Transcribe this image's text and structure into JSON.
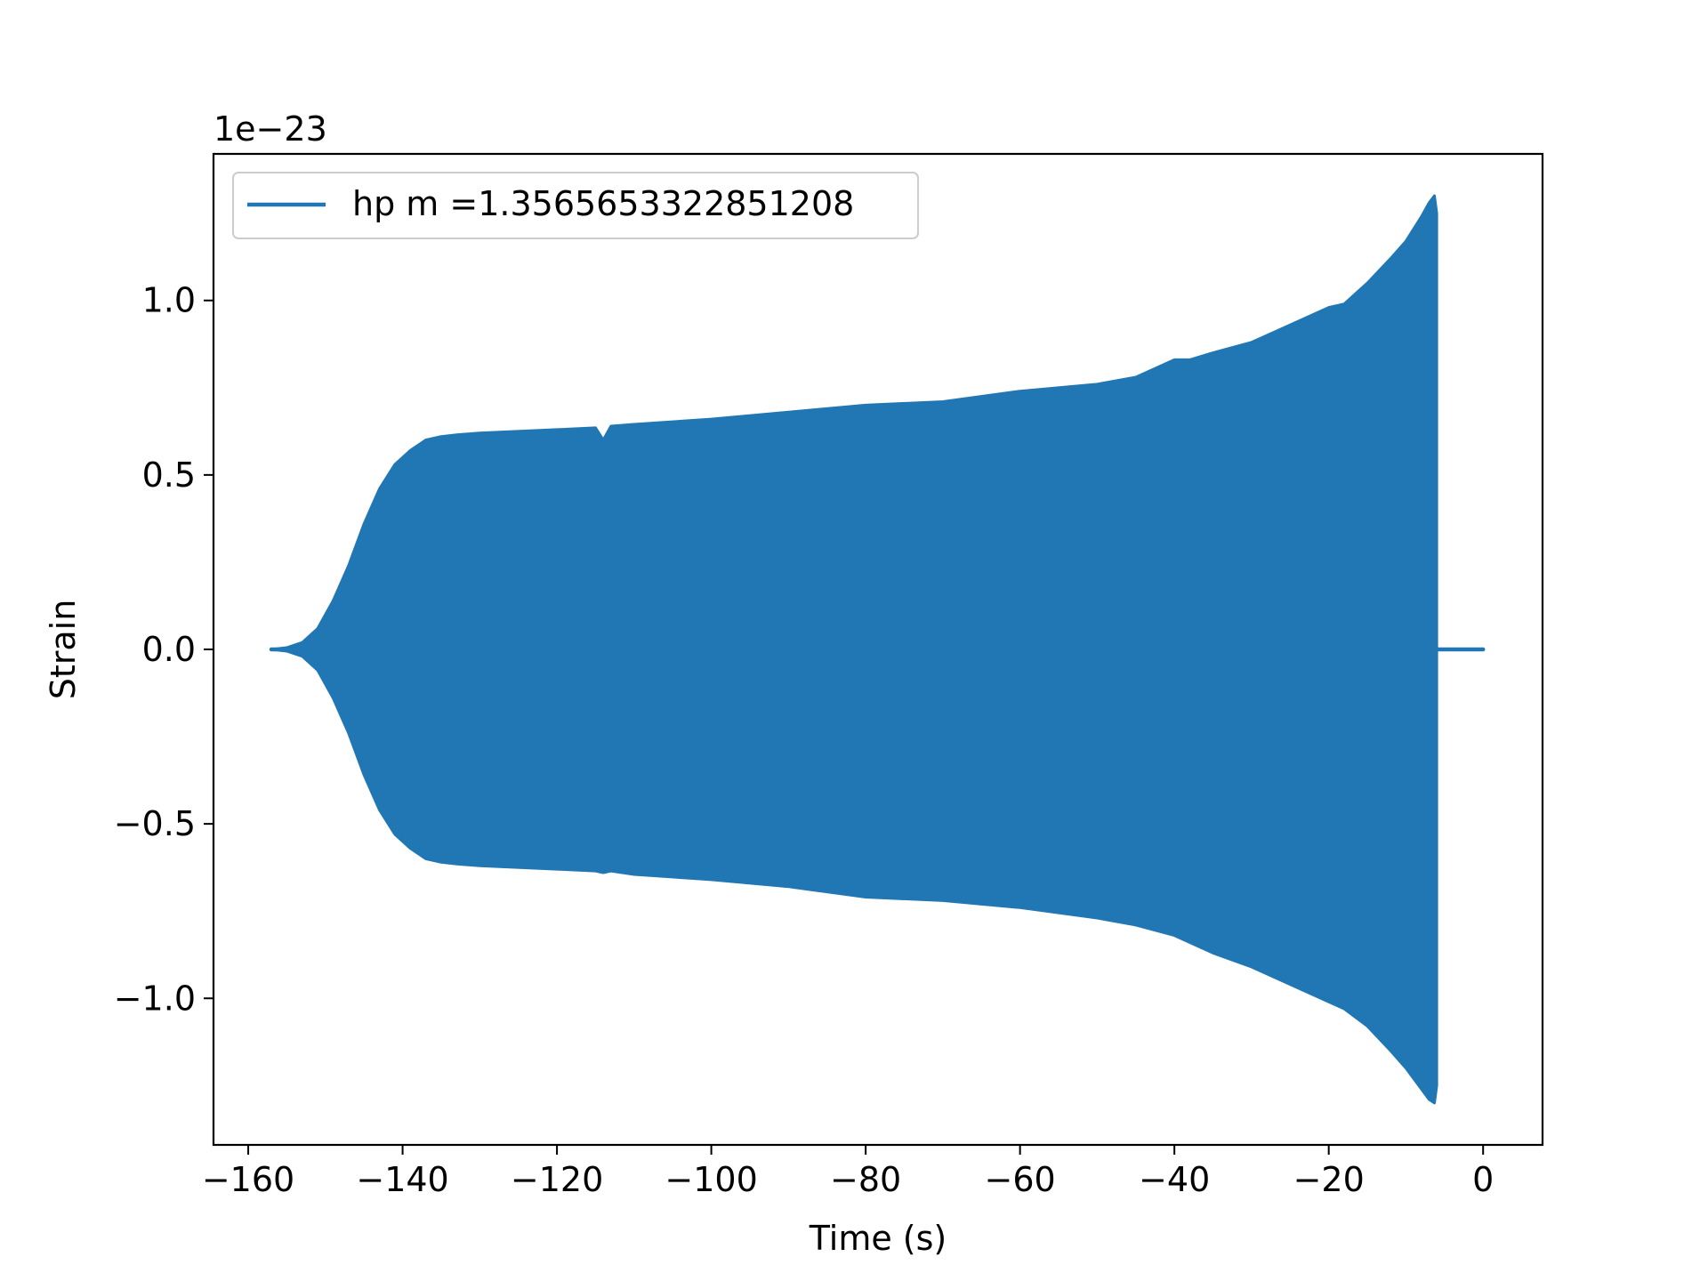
{
  "chart_data": {
    "type": "area",
    "title": "",
    "xlabel": "Time (s)",
    "ylabel": "Strain",
    "offset_text": "1e−23",
    "scale": 1e-23,
    "xlim": [
      -164.5,
      7.7
    ],
    "ylim": [
      -1.42,
      1.42
    ],
    "xticks": [
      -160,
      -140,
      -120,
      -100,
      -80,
      -60,
      -40,
      -20,
      0
    ],
    "xtick_labels": [
      "−160",
      "−140",
      "−120",
      "−100",
      "−80",
      "−60",
      "−40",
      "−20",
      "0"
    ],
    "yticks": [
      -1.0,
      -0.5,
      0.0,
      0.5,
      1.0
    ],
    "ytick_labels": [
      "−1.0",
      "−0.5",
      "0.0",
      "0.5",
      "1.0"
    ],
    "grid": false,
    "legend_position": "upper-left",
    "series": [
      {
        "name": "hp m =1.3565653322851208",
        "color": "#2077b4",
        "envelope": {
          "t": [
            -157.0,
            -155,
            -153,
            -151,
            -149,
            -147,
            -145,
            -143,
            -141,
            -139,
            -137,
            -135,
            -133,
            -130,
            -120,
            -115,
            -114,
            -113,
            -110,
            -100,
            -90,
            -80,
            -70,
            -60,
            -50,
            -45,
            -40,
            -38,
            -35,
            -30,
            -25,
            -20,
            -18,
            -15,
            -12,
            -10,
            -8,
            -7,
            -6.3,
            -6.0
          ],
          "upper": [
            0.0,
            0.005,
            0.02,
            0.06,
            0.14,
            0.24,
            0.36,
            0.46,
            0.53,
            0.57,
            0.6,
            0.61,
            0.615,
            0.62,
            0.63,
            0.635,
            0.6,
            0.64,
            0.645,
            0.66,
            0.68,
            0.7,
            0.71,
            0.74,
            0.76,
            0.78,
            0.83,
            0.83,
            0.85,
            0.88,
            0.93,
            0.98,
            0.99,
            1.05,
            1.12,
            1.17,
            1.24,
            1.28,
            1.3,
            1.25
          ],
          "lower": [
            0.0,
            -0.005,
            -0.02,
            -0.06,
            -0.14,
            -0.24,
            -0.36,
            -0.46,
            -0.53,
            -0.57,
            -0.6,
            -0.61,
            -0.615,
            -0.62,
            -0.63,
            -0.635,
            -0.64,
            -0.635,
            -0.645,
            -0.66,
            -0.68,
            -0.71,
            -0.72,
            -0.74,
            -0.77,
            -0.79,
            -0.82,
            -0.84,
            -0.87,
            -0.91,
            -0.96,
            -1.01,
            -1.03,
            -1.08,
            -1.15,
            -1.2,
            -1.26,
            -1.29,
            -1.3,
            -1.25
          ]
        },
        "tail": {
          "t": [
            -6.0,
            0.0
          ],
          "y": [
            0.0,
            0.0
          ]
        }
      }
    ]
  }
}
